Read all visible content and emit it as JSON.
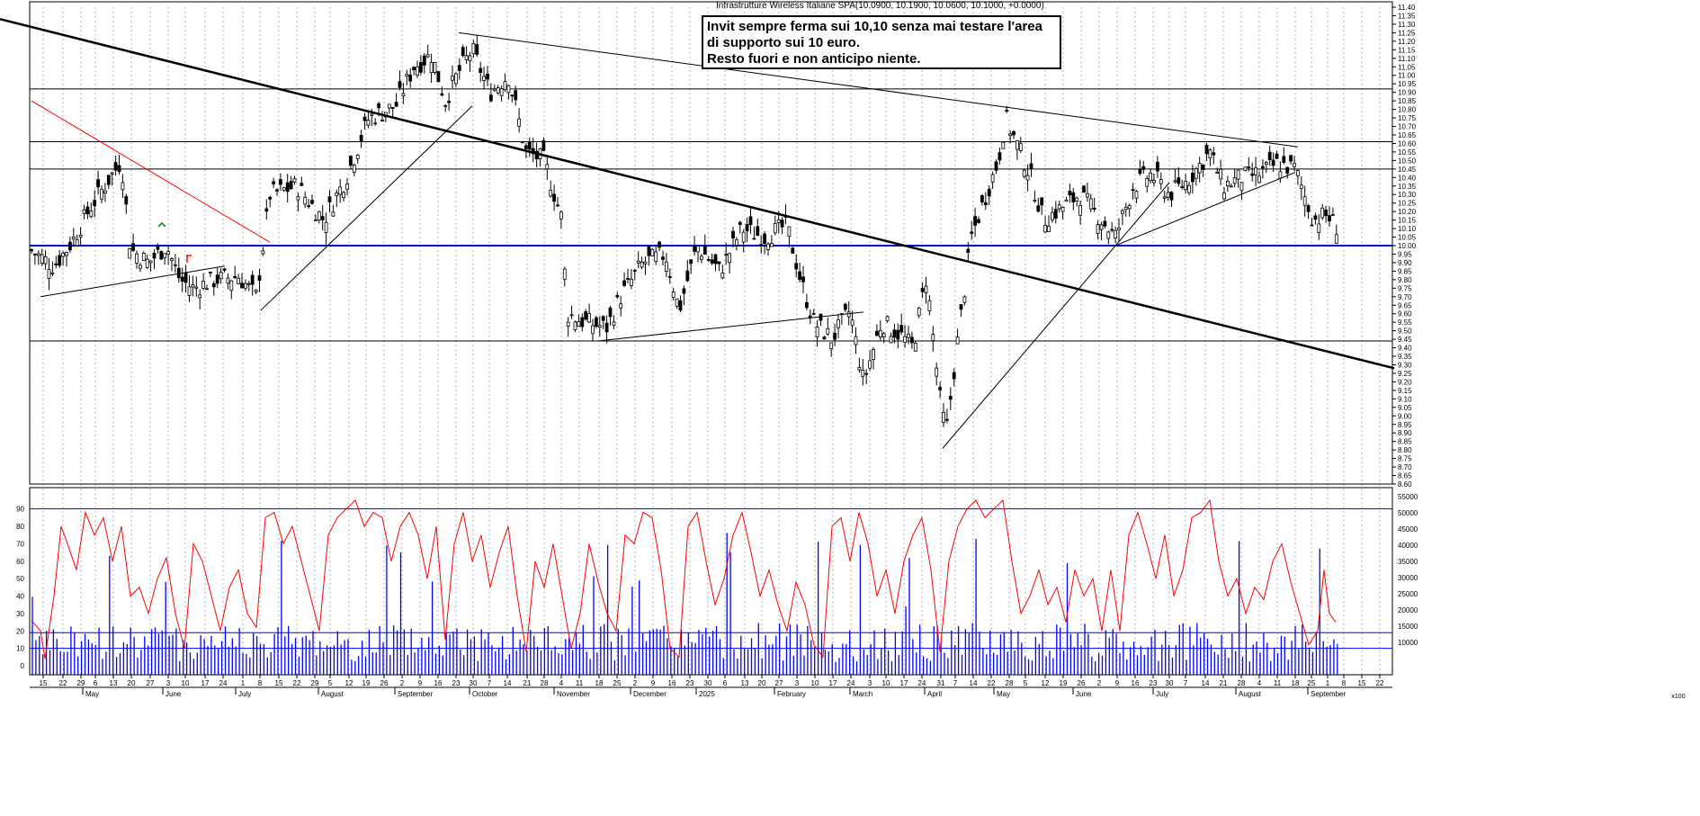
{
  "chart_data": {
    "type": "candlestick",
    "title": "Infrastrutture Wireless Italiane SPA(10.0900, 10.1900, 10.0600, 10.1000, +0.0000)",
    "annotation": [
      "Invit sempre ferma sui 10,10 senza mai testare l'area",
      "di supporto sui 10 euro.",
      "Resto fuori e non anticipo niente."
    ],
    "price_axis": {
      "min": 8.6,
      "max": 11.4,
      "step": 0.05,
      "labels": [
        "11.40",
        "11.35",
        "11.30",
        "11.25",
        "11.20",
        "11.15",
        "11.10",
        "11.05",
        "11.00",
        "10.95",
        "10.90",
        "10.85",
        "10.80",
        "10.75",
        "10.70",
        "10.65",
        "10.60",
        "10.55",
        "10.50",
        "10.45",
        "10.40",
        "10.35",
        "10.30",
        "10.25",
        "10.20",
        "10.15",
        "10.10",
        "10.05",
        "10.00",
        "9.95",
        "9.90",
        "9.85",
        "9.80",
        "9.75",
        "9.70",
        "9.65",
        "9.60",
        "9.55",
        "9.50",
        "9.45",
        "9.40",
        "9.35",
        "9.30",
        "9.25",
        "9.20",
        "9.15",
        "9.10",
        "9.05",
        "9.00",
        "8.95",
        "8.90",
        "8.85",
        "8.80",
        "8.75",
        "8.70",
        "8.65",
        "8.60"
      ]
    },
    "horizontal_levels": [
      {
        "value": 10.92,
        "color": "#000000"
      },
      {
        "value": 10.61,
        "color": "#000000"
      },
      {
        "value": 10.45,
        "color": "#000000"
      },
      {
        "value": 10.0,
        "color": "#0000c8"
      },
      {
        "value": 9.44,
        "color": "#000000"
      }
    ],
    "trendlines": [
      {
        "from": [
          0,
          11.33
        ],
        "to": [
          1550,
          9.28
        ],
        "color": "#000000",
        "width": 2.5
      },
      {
        "from": [
          35,
          10.85
        ],
        "to": [
          300,
          10.02
        ],
        "color": "#ff0000",
        "width": 1
      },
      {
        "from": [
          45,
          9.7
        ],
        "to": [
          250,
          9.88
        ],
        "color": "#000000",
        "width": 1
      },
      {
        "from": [
          290,
          9.62
        ],
        "to": [
          525,
          10.82
        ],
        "color": "#000000",
        "width": 1
      },
      {
        "from": [
          510,
          11.25
        ],
        "to": [
          1443,
          10.58
        ],
        "color": "#000000",
        "width": 1
      },
      {
        "from": [
          665,
          9.44
        ],
        "to": [
          960,
          9.61
        ],
        "color": "#000000",
        "width": 1
      },
      {
        "from": [
          1048,
          8.81
        ],
        "to": [
          1300,
          10.37
        ],
        "color": "#000000",
        "width": 1
      },
      {
        "from": [
          1240,
          10.0
        ],
        "to": [
          1440,
          10.43
        ],
        "color": "#000000",
        "width": 1
      }
    ],
    "price_path": [
      [
        35,
        9.97
      ],
      [
        60,
        9.88
      ],
      [
        80,
        10.02
      ],
      [
        100,
        10.22
      ],
      [
        120,
        10.38
      ],
      [
        135,
        10.5
      ],
      [
        145,
        9.98
      ],
      [
        165,
        9.9
      ],
      [
        185,
        10.0
      ],
      [
        200,
        9.8
      ],
      [
        215,
        9.75
      ],
      [
        240,
        9.8
      ],
      [
        265,
        9.82
      ],
      [
        285,
        9.7
      ],
      [
        300,
        10.3
      ],
      [
        330,
        10.35
      ],
      [
        360,
        10.15
      ],
      [
        385,
        10.4
      ],
      [
        410,
        10.75
      ],
      [
        440,
        10.82
      ],
      [
        460,
        11.05
      ],
      [
        480,
        11.12
      ],
      [
        495,
        10.85
      ],
      [
        510,
        11.02
      ],
      [
        525,
        11.15
      ],
      [
        545,
        10.9
      ],
      [
        565,
        11.0
      ],
      [
        585,
        10.55
      ],
      [
        605,
        10.5
      ],
      [
        625,
        10.15
      ],
      [
        630,
        9.6
      ],
      [
        650,
        9.55
      ],
      [
        675,
        9.52
      ],
      [
        690,
        9.7
      ],
      [
        715,
        9.9
      ],
      [
        740,
        9.95
      ],
      [
        755,
        9.62
      ],
      [
        775,
        10.0
      ],
      [
        800,
        9.85
      ],
      [
        825,
        10.1
      ],
      [
        850,
        10.05
      ],
      [
        875,
        10.12
      ],
      [
        890,
        9.8
      ],
      [
        905,
        9.55
      ],
      [
        925,
        9.45
      ],
      [
        945,
        9.62
      ],
      [
        960,
        9.2
      ],
      [
        980,
        9.55
      ],
      [
        1000,
        9.48
      ],
      [
        1015,
        9.4
      ],
      [
        1030,
        9.82
      ],
      [
        1045,
        9.1
      ],
      [
        1052,
        8.9
      ],
      [
        1065,
        9.45
      ],
      [
        1080,
        10.05
      ],
      [
        1095,
        10.28
      ],
      [
        1110,
        10.5
      ],
      [
        1118,
        10.75
      ],
      [
        1130,
        10.6
      ],
      [
        1145,
        10.42
      ],
      [
        1160,
        10.15
      ],
      [
        1180,
        10.22
      ],
      [
        1200,
        10.3
      ],
      [
        1220,
        10.18
      ],
      [
        1240,
        10.05
      ],
      [
        1260,
        10.35
      ],
      [
        1280,
        10.42
      ],
      [
        1300,
        10.3
      ],
      [
        1320,
        10.38
      ],
      [
        1345,
        10.55
      ],
      [
        1360,
        10.35
      ],
      [
        1380,
        10.4
      ],
      [
        1400,
        10.42
      ],
      [
        1420,
        10.48
      ],
      [
        1440,
        10.45
      ],
      [
        1460,
        10.15
      ],
      [
        1475,
        10.18
      ],
      [
        1488,
        10.1
      ]
    ],
    "oscillator": {
      "type": "line",
      "color": "#ff0000",
      "levels": [
        10,
        90
      ],
      "axis_labels": [
        "90",
        "80",
        "70",
        "60",
        "50",
        "40",
        "30",
        "20",
        "10",
        "0"
      ],
      "points": [
        [
          35,
          26
        ],
        [
          45,
          20
        ],
        [
          50,
          4
        ],
        [
          60,
          40
        ],
        [
          68,
          80
        ],
        [
          75,
          70
        ],
        [
          85,
          55
        ],
        [
          95,
          88
        ],
        [
          105,
          75
        ],
        [
          115,
          85
        ],
        [
          125,
          60
        ],
        [
          135,
          80
        ],
        [
          145,
          40
        ],
        [
          155,
          45
        ],
        [
          165,
          30
        ],
        [
          175,
          50
        ],
        [
          185,
          62
        ],
        [
          195,
          30
        ],
        [
          205,
          10
        ],
        [
          215,
          70
        ],
        [
          225,
          60
        ],
        [
          235,
          40
        ],
        [
          245,
          20
        ],
        [
          255,
          45
        ],
        [
          265,
          55
        ],
        [
          275,
          30
        ],
        [
          285,
          22
        ],
        [
          295,
          85
        ],
        [
          305,
          88
        ],
        [
          315,
          70
        ],
        [
          325,
          80
        ],
        [
          335,
          60
        ],
        [
          345,
          40
        ],
        [
          355,
          20
        ],
        [
          365,
          75
        ],
        [
          375,
          85
        ],
        [
          385,
          90
        ],
        [
          395,
          95
        ],
        [
          405,
          80
        ],
        [
          415,
          88
        ],
        [
          425,
          85
        ],
        [
          435,
          60
        ],
        [
          445,
          80
        ],
        [
          455,
          88
        ],
        [
          465,
          75
        ],
        [
          475,
          50
        ],
        [
          485,
          80
        ],
        [
          495,
          15
        ],
        [
          505,
          70
        ],
        [
          515,
          88
        ],
        [
          525,
          60
        ],
        [
          535,
          75
        ],
        [
          545,
          45
        ],
        [
          555,
          65
        ],
        [
          565,
          80
        ],
        [
          575,
          40
        ],
        [
          585,
          8
        ],
        [
          595,
          60
        ],
        [
          605,
          45
        ],
        [
          615,
          70
        ],
        [
          625,
          40
        ],
        [
          635,
          10
        ],
        [
          645,
          30
        ],
        [
          655,
          70
        ],
        [
          665,
          48
        ],
        [
          675,
          30
        ],
        [
          685,
          20
        ],
        [
          695,
          75
        ],
        [
          705,
          70
        ],
        [
          715,
          88
        ],
        [
          725,
          85
        ],
        [
          735,
          55
        ],
        [
          745,
          10
        ],
        [
          755,
          5
        ],
        [
          765,
          80
        ],
        [
          775,
          88
        ],
        [
          785,
          60
        ],
        [
          795,
          35
        ],
        [
          805,
          50
        ],
        [
          815,
          75
        ],
        [
          825,
          88
        ],
        [
          835,
          65
        ],
        [
          845,
          40
        ],
        [
          855,
          55
        ],
        [
          865,
          35
        ],
        [
          875,
          20
        ],
        [
          885,
          48
        ],
        [
          895,
          35
        ],
        [
          905,
          12
        ],
        [
          915,
          5
        ],
        [
          925,
          80
        ],
        [
          935,
          85
        ],
        [
          945,
          60
        ],
        [
          955,
          88
        ],
        [
          965,
          70
        ],
        [
          975,
          40
        ],
        [
          985,
          55
        ],
        [
          995,
          30
        ],
        [
          1005,
          60
        ],
        [
          1015,
          75
        ],
        [
          1025,
          85
        ],
        [
          1035,
          55
        ],
        [
          1045,
          8
        ],
        [
          1055,
          60
        ],
        [
          1065,
          80
        ],
        [
          1075,
          90
        ],
        [
          1085,
          95
        ],
        [
          1095,
          85
        ],
        [
          1105,
          90
        ],
        [
          1115,
          95
        ],
        [
          1125,
          60
        ],
        [
          1135,
          30
        ],
        [
          1145,
          40
        ],
        [
          1155,
          55
        ],
        [
          1165,
          35
        ],
        [
          1175,
          45
        ],
        [
          1185,
          25
        ],
        [
          1195,
          55
        ],
        [
          1205,
          40
        ],
        [
          1215,
          50
        ],
        [
          1225,
          20
        ],
        [
          1235,
          55
        ],
        [
          1245,
          20
        ],
        [
          1255,
          75
        ],
        [
          1265,
          88
        ],
        [
          1275,
          70
        ],
        [
          1285,
          50
        ],
        [
          1295,
          75
        ],
        [
          1305,
          40
        ],
        [
          1315,
          55
        ],
        [
          1325,
          85
        ],
        [
          1335,
          88
        ],
        [
          1345,
          95
        ],
        [
          1355,
          60
        ],
        [
          1365,
          40
        ],
        [
          1375,
          50
        ],
        [
          1385,
          30
        ],
        [
          1395,
          45
        ],
        [
          1405,
          38
        ],
        [
          1415,
          60
        ],
        [
          1425,
          70
        ],
        [
          1435,
          48
        ],
        [
          1445,
          30
        ],
        [
          1455,
          12
        ],
        [
          1465,
          20
        ],
        [
          1472,
          55
        ],
        [
          1478,
          30
        ],
        [
          1485,
          25
        ]
      ]
    },
    "volume": {
      "type": "bar",
      "color": "#0000ff",
      "axis_labels": [
        "55000",
        "50000",
        "45000",
        "40000",
        "35000",
        "30000",
        "25000",
        "20000",
        "15000",
        "10000"
      ],
      "max": 55000,
      "level": 13000
    },
    "x_axis": {
      "day_ticks": [
        [
          48,
          "15"
        ],
        [
          70,
          "22"
        ],
        [
          90,
          "29"
        ],
        [
          106,
          "6"
        ],
        [
          126,
          "13"
        ],
        [
          146,
          "20"
        ],
        [
          167,
          "27"
        ],
        [
          187,
          "3"
        ],
        [
          206,
          "10"
        ],
        [
          228,
          "17"
        ],
        [
          248,
          "24"
        ],
        [
          270,
          "1"
        ],
        [
          289,
          "8"
        ],
        [
          310,
          "15"
        ],
        [
          330,
          "22"
        ],
        [
          350,
          "29"
        ],
        [
          367,
          "5"
        ],
        [
          388,
          "12"
        ],
        [
          407,
          "19"
        ],
        [
          427,
          "26"
        ],
        [
          447,
          "2"
        ],
        [
          467,
          "9"
        ],
        [
          487,
          "16"
        ],
        [
          507,
          "23"
        ],
        [
          526,
          "30"
        ],
        [
          544,
          "7"
        ],
        [
          564,
          "14"
        ],
        [
          586,
          "21"
        ],
        [
          605,
          "28"
        ],
        [
          624,
          "4"
        ],
        [
          644,
          "11"
        ],
        [
          666,
          "18"
        ],
        [
          686,
          "25"
        ],
        [
          706,
          "2"
        ],
        [
          726,
          "9"
        ],
        [
          747,
          "16"
        ],
        [
          767,
          "23"
        ],
        [
          787,
          "30"
        ],
        [
          806,
          "6"
        ],
        [
          828,
          "13"
        ],
        [
          847,
          "20"
        ],
        [
          866,
          "27"
        ],
        [
          886,
          "3"
        ],
        [
          906,
          "10"
        ],
        [
          926,
          "17"
        ],
        [
          946,
          "24"
        ],
        [
          967,
          "3"
        ],
        [
          985,
          "10"
        ],
        [
          1005,
          "17"
        ],
        [
          1025,
          "24"
        ],
        [
          1046,
          "31"
        ],
        [
          1062,
          "7"
        ],
        [
          1082,
          "14"
        ],
        [
          1102,
          "22"
        ],
        [
          1122,
          "28"
        ],
        [
          1140,
          "5"
        ],
        [
          1162,
          "12"
        ],
        [
          1182,
          "19"
        ],
        [
          1202,
          "26"
        ],
        [
          1222,
          "2"
        ],
        [
          1242,
          "9"
        ],
        [
          1262,
          "16"
        ],
        [
          1282,
          "23"
        ],
        [
          1300,
          "30"
        ],
        [
          1318,
          "7"
        ],
        [
          1340,
          "14"
        ],
        [
          1360,
          "21"
        ],
        [
          1380,
          "28"
        ],
        [
          1400,
          "4"
        ],
        [
          1420,
          "11"
        ],
        [
          1440,
          "18"
        ],
        [
          1458,
          "25"
        ],
        [
          1476,
          "1"
        ],
        [
          1494,
          "8"
        ],
        [
          1514,
          "15"
        ],
        [
          1534,
          "22"
        ]
      ],
      "month_labels": [
        [
          95,
          "May"
        ],
        [
          184,
          "June"
        ],
        [
          265,
          "July"
        ],
        [
          357,
          "August"
        ],
        [
          442,
          "September"
        ],
        [
          525,
          "October"
        ],
        [
          619,
          "November"
        ],
        [
          704,
          "December"
        ],
        [
          777,
          "2025"
        ],
        [
          864,
          "February"
        ],
        [
          948,
          "March"
        ],
        [
          1031,
          "April"
        ],
        [
          1108,
          "May"
        ],
        [
          1196,
          "June"
        ],
        [
          1285,
          "July"
        ],
        [
          1377,
          "August"
        ],
        [
          1457,
          "September"
        ]
      ]
    },
    "corner_label": "x100"
  }
}
